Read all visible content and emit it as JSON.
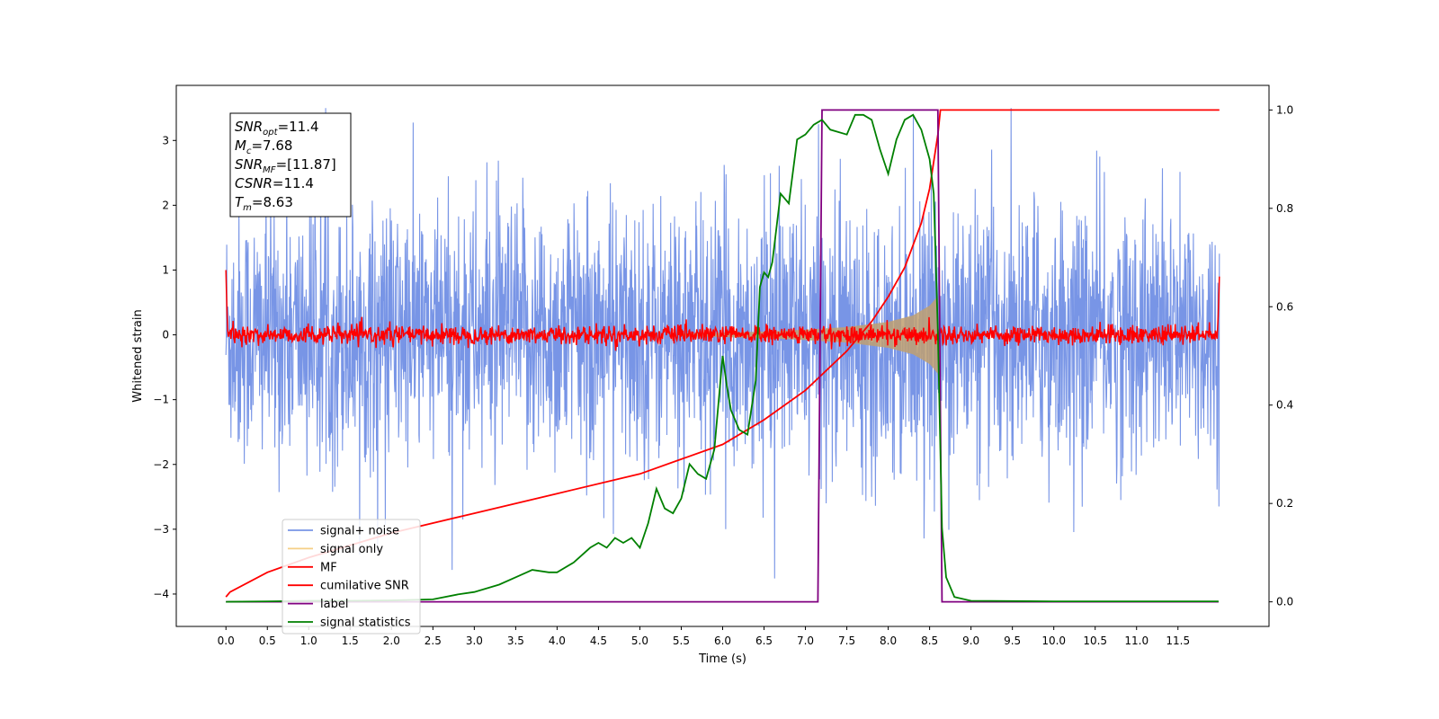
{
  "chart_data": {
    "type": "line",
    "xlabel": "Time (s)",
    "ylabel": "Whitened strain",
    "xlim": [
      -0.6,
      12.6
    ],
    "ylim_left": [
      -4.5,
      3.85
    ],
    "ylim_right": [
      -0.05,
      1.05
    ],
    "grid": false,
    "legend_position": "lower-left",
    "x_ticks": [
      "0.0",
      "0.5",
      "1.0",
      "1.5",
      "2.0",
      "2.5",
      "3.0",
      "3.5",
      "4.0",
      "4.5",
      "5.0",
      "5.5",
      "6.0",
      "6.5",
      "7.0",
      "7.5",
      "8.0",
      "8.5",
      "9.0",
      "9.5",
      "10.0",
      "10.5",
      "11.0",
      "11.5"
    ],
    "y_ticks_left": [
      "−4",
      "−3",
      "−2",
      "−1",
      "0",
      "1",
      "2",
      "3"
    ],
    "y_ticks_right": [
      "0.0",
      "0.2",
      "0.4",
      "0.6",
      "0.8",
      "1.0"
    ],
    "annotation": {
      "lines": [
        {
          "sym": "SNR",
          "sub": "opt",
          "value": "=11.4"
        },
        {
          "sym": "M",
          "sub": "c",
          "value": "=7.68"
        },
        {
          "sym": "SNR",
          "sub": "MF",
          "value": "=[11.87]"
        },
        {
          "sym": "CSNR",
          "sub": "",
          "value": "=11.4"
        },
        {
          "sym": "T",
          "sub": "m",
          "value": "=8.63"
        }
      ]
    },
    "legend": [
      {
        "name": "signal+ noise",
        "color": "#7895e6"
      },
      {
        "name": "signal only",
        "color": "#f5cf86"
      },
      {
        "name": "MF",
        "color": "#ff0000"
      },
      {
        "name": "cumilative SNR",
        "color": "#ff0000"
      },
      {
        "name": "label",
        "color": "#800080"
      },
      {
        "name": "signal statistics",
        "color": "#008000"
      }
    ],
    "series": [
      {
        "name": "signal+ noise",
        "axis": "left",
        "color": "#7895e6",
        "t_range": [
          0.0,
          12.0
        ],
        "approx_amplitude_std": 1.0,
        "kind": "noise"
      },
      {
        "name": "signal only",
        "axis": "left",
        "color": "#c0a070",
        "envelope": {
          "x": [
            5.5,
            6.5,
            7.0,
            7.5,
            8.0,
            8.3,
            8.5,
            8.6
          ],
          "y": [
            0.02,
            0.05,
            0.08,
            0.12,
            0.2,
            0.3,
            0.45,
            0.6
          ]
        }
      },
      {
        "name": "MF",
        "axis": "left",
        "color": "#ff0000",
        "t_range": [
          0.0,
          12.0
        ],
        "approx_amplitude": 0.12,
        "kind": "noise"
      },
      {
        "name": "cumilative SNR",
        "axis": "right",
        "color": "#ff0000",
        "x": [
          0.0,
          0.05,
          0.5,
          1.0,
          2.0,
          3.0,
          4.0,
          5.0,
          5.5,
          6.0,
          6.5,
          7.0,
          7.5,
          7.8,
          8.0,
          8.2,
          8.4,
          8.5,
          8.6,
          8.63,
          12.0
        ],
        "y": [
          0.01,
          0.02,
          0.06,
          0.09,
          0.14,
          0.18,
          0.22,
          0.26,
          0.29,
          0.32,
          0.37,
          0.43,
          0.51,
          0.57,
          0.62,
          0.68,
          0.77,
          0.84,
          0.95,
          1.0,
          1.0
        ]
      },
      {
        "name": "label",
        "axis": "right",
        "color": "#800080",
        "x": [
          0.0,
          7.15,
          7.2,
          8.6,
          8.65,
          11.99
        ],
        "y": [
          0.0,
          0.0,
          1.0,
          1.0,
          0.0,
          0.0
        ]
      },
      {
        "name": "signal statistics",
        "axis": "right",
        "color": "#008000",
        "x": [
          0.0,
          0.5,
          1.0,
          1.5,
          2.0,
          2.5,
          2.8,
          3.0,
          3.3,
          3.5,
          3.7,
          3.9,
          4.0,
          4.2,
          4.4,
          4.5,
          4.6,
          4.7,
          4.8,
          4.9,
          5.0,
          5.1,
          5.2,
          5.3,
          5.4,
          5.5,
          5.6,
          5.7,
          5.8,
          5.9,
          6.0,
          6.05,
          6.1,
          6.2,
          6.3,
          6.4,
          6.45,
          6.5,
          6.55,
          6.6,
          6.7,
          6.8,
          6.9,
          7.0,
          7.1,
          7.2,
          7.3,
          7.5,
          7.6,
          7.7,
          7.8,
          7.9,
          8.0,
          8.1,
          8.2,
          8.3,
          8.4,
          8.5,
          8.55,
          8.6,
          8.65,
          8.7,
          8.8,
          9.0,
          10.0,
          11.0,
          11.99
        ],
        "y": [
          0.0,
          0.001,
          0.002,
          0.002,
          0.003,
          0.005,
          0.015,
          0.02,
          0.035,
          0.05,
          0.065,
          0.06,
          0.06,
          0.08,
          0.11,
          0.12,
          0.11,
          0.13,
          0.12,
          0.13,
          0.11,
          0.16,
          0.23,
          0.19,
          0.18,
          0.21,
          0.28,
          0.26,
          0.25,
          0.31,
          0.5,
          0.44,
          0.39,
          0.35,
          0.34,
          0.45,
          0.64,
          0.67,
          0.66,
          0.69,
          0.83,
          0.81,
          0.94,
          0.95,
          0.97,
          0.98,
          0.96,
          0.95,
          0.99,
          0.99,
          0.98,
          0.92,
          0.87,
          0.94,
          0.98,
          0.99,
          0.96,
          0.9,
          0.83,
          0.55,
          0.15,
          0.05,
          0.01,
          0.002,
          0.001,
          0.001,
          0.001
        ]
      }
    ]
  }
}
